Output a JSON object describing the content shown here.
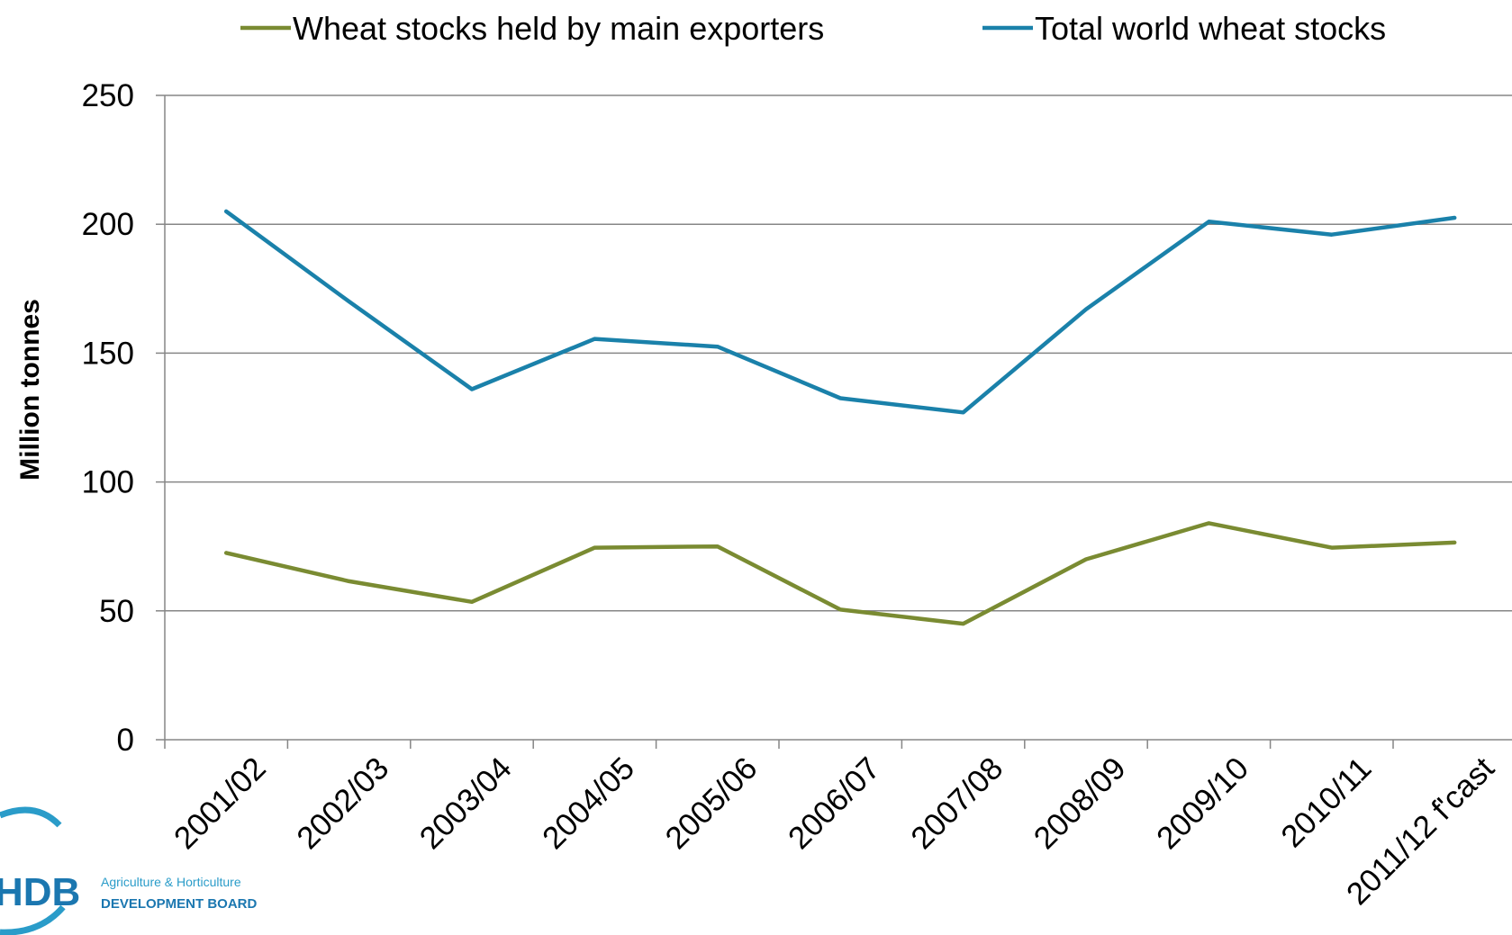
{
  "chart_data": {
    "type": "line",
    "categories": [
      "2001/02",
      "2002/03",
      "2003/04",
      "2004/05",
      "2005/06",
      "2006/07",
      "2007/08",
      "2008/09",
      "2009/10",
      "2010/11",
      "2011/12 f'cast"
    ],
    "series": [
      {
        "name": "Wheat stocks held by main exporters",
        "color": "#7a8b32",
        "values": [
          72.5,
          61.5,
          53.5,
          74.5,
          75,
          50.5,
          45,
          70,
          84,
          74.5,
          76.5
        ]
      },
      {
        "name": "Total world wheat stocks",
        "color": "#1a81aa",
        "values": [
          205,
          170,
          136,
          155.5,
          152.5,
          132.5,
          127,
          167,
          201,
          196,
          202.5
        ]
      }
    ],
    "ylabel": "Million tonnes",
    "ylim": [
      0,
      250
    ],
    "yticks": [
      0,
      50,
      100,
      150,
      200,
      250
    ],
    "grid": true,
    "legend_position": "top"
  },
  "logo": {
    "hdb": "HDB",
    "line1": "Agriculture & Horticulture",
    "line2": "DEVELOPMENT BOARD"
  }
}
